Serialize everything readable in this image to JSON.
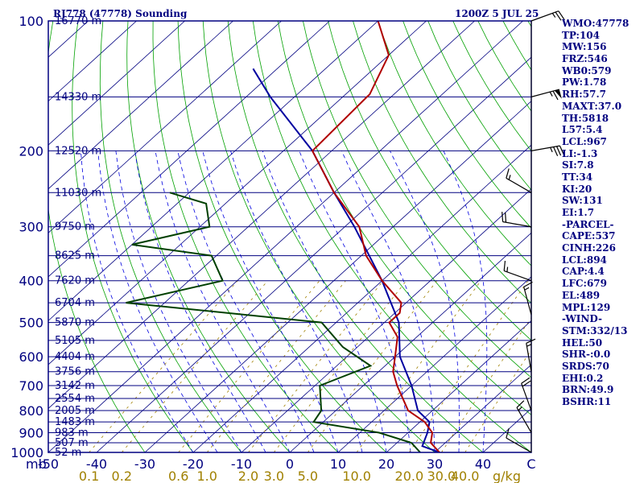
{
  "header": {
    "station": "RJ778 (47778) Sounding",
    "time": "1200Z  5 JUL 25"
  },
  "indices": [
    "WMO:47778",
    "TP:104",
    "MW:156",
    "FRZ:546",
    "WB0:579",
    "PW:1.78",
    "RH:57.7",
    "MAXT:37.0",
    "TH:5818",
    "L57:5.4",
    "LCL:967",
    "LI:-1.3",
    "SI:7.8",
    "TT:34",
    "KI:20",
    "SW:131",
    "EI:1.7",
    "-PARCEL-",
    "CAPE:537",
    "CINH:226",
    "LCL:894",
    "CAP:4.4",
    "LFC:679",
    "EL:489",
    "MPL:129",
    "-WIND-",
    "STM:332/13",
    "HEL:50",
    "SHR-:0.0",
    "SRDS:70",
    "EHI:0.2",
    "BRN:49.9",
    "BSHR:11"
  ],
  "colors": {
    "frame": "#000080",
    "isobar": "#000080",
    "isotherm": "#000080",
    "dry_adiabat": "#00a000",
    "moist_adiabat": "#0000e0",
    "mixing_ratio": "#00c0e0",
    "temperature": "#b00000",
    "dewpoint": "#004000",
    "parcel": "#0000a0",
    "wind_barb": "#000000",
    "mixing_ratio_label": "#a08000"
  },
  "chart_data": {
    "type": "skew-t",
    "pressure_axis": {
      "unit": "mb",
      "scale": "log",
      "range": [
        1000,
        100
      ],
      "labels": [
        "100",
        "200",
        "300",
        "400",
        "500",
        "600",
        "700",
        "800",
        "900",
        "1000"
      ]
    },
    "temperature_axis": {
      "unit": "C",
      "range": [
        -50,
        50
      ],
      "labels": [
        "-50",
        "-40",
        "-30",
        "-20",
        "-10",
        "0",
        "10",
        "20",
        "30",
        "40"
      ]
    },
    "mixing_ratio_axis": {
      "unit": "g/kg",
      "labels": [
        "0.1",
        "0.2",
        "0.6",
        "1.0",
        "2.0",
        "3.0",
        "5.0",
        "10.0",
        "20.0",
        "30.0",
        "40.0"
      ],
      "values": [
        0.1,
        0.2,
        0.6,
        1.0,
        2.0,
        3.0,
        5.0,
        10.0,
        20.0,
        30.0,
        40.0
      ]
    },
    "heights": [
      {
        "p": 100,
        "label": "16770 m"
      },
      {
        "p": 150,
        "label": "14330 m"
      },
      {
        "p": 200,
        "label": "12520 m"
      },
      {
        "p": 250,
        "label": "11030 m"
      },
      {
        "p": 300,
        "label": "9750 m"
      },
      {
        "p": 350,
        "label": "8625 m"
      },
      {
        "p": 400,
        "label": "7620 m"
      },
      {
        "p": 450,
        "label": "6704 m"
      },
      {
        "p": 500,
        "label": "5870 m"
      },
      {
        "p": 550,
        "label": "5105 m"
      },
      {
        "p": 600,
        "label": "4404 m"
      },
      {
        "p": 650,
        "label": "3756 m"
      },
      {
        "p": 700,
        "label": "3142 m"
      },
      {
        "p": 750,
        "label": "2554 m"
      },
      {
        "p": 800,
        "label": "2005 m"
      },
      {
        "p": 850,
        "label": "1483 m"
      },
      {
        "p": 900,
        "label": "983 m"
      },
      {
        "p": 950,
        "label": "507 m"
      },
      {
        "p": 1000,
        "label": "52 m"
      }
    ],
    "temperature": [
      {
        "p": 100,
        "t": -80
      },
      {
        "p": 120,
        "t": -70
      },
      {
        "p": 148,
        "t": -65
      },
      {
        "p": 150,
        "t": -65
      },
      {
        "p": 200,
        "t": -64
      },
      {
        "p": 250,
        "t": -50
      },
      {
        "p": 300,
        "t": -37
      },
      {
        "p": 350,
        "t": -29
      },
      {
        "p": 400,
        "t": -20
      },
      {
        "p": 450,
        "t": -11
      },
      {
        "p": 475,
        "t": -9
      },
      {
        "p": 500,
        "t": -9
      },
      {
        "p": 540,
        "t": -4
      },
      {
        "p": 600,
        "t": 0
      },
      {
        "p": 650,
        "t": 3
      },
      {
        "p": 700,
        "t": 7
      },
      {
        "p": 800,
        "t": 15
      },
      {
        "p": 850,
        "t": 21
      },
      {
        "p": 900,
        "t": 25
      },
      {
        "p": 950,
        "t": 27
      },
      {
        "p": 1000,
        "t": 31
      }
    ],
    "dewpoint": [
      {
        "p": 250,
        "t": -84
      },
      {
        "p": 265,
        "t": -74
      },
      {
        "p": 300,
        "t": -68
      },
      {
        "p": 330,
        "t": -80
      },
      {
        "p": 350,
        "t": -61
      },
      {
        "p": 400,
        "t": -53
      },
      {
        "p": 450,
        "t": -68
      },
      {
        "p": 500,
        "t": -23
      },
      {
        "p": 570,
        "t": -13
      },
      {
        "p": 630,
        "t": -3
      },
      {
        "p": 700,
        "t": -9
      },
      {
        "p": 800,
        "t": -3
      },
      {
        "p": 850,
        "t": -2
      },
      {
        "p": 900,
        "t": 14
      },
      {
        "p": 950,
        "t": 23
      },
      {
        "p": 1000,
        "t": 27
      }
    ],
    "parcel": [
      {
        "p": 1000,
        "t": 31
      },
      {
        "p": 967,
        "t": 26
      },
      {
        "p": 900,
        "t": 24
      },
      {
        "p": 850,
        "t": 22
      },
      {
        "p": 800,
        "t": 17
      },
      {
        "p": 700,
        "t": 10
      },
      {
        "p": 600,
        "t": 1
      },
      {
        "p": 500,
        "t": -7
      },
      {
        "p": 400,
        "t": -20
      },
      {
        "p": 300,
        "t": -38
      },
      {
        "p": 250,
        "t": -50
      },
      {
        "p": 200,
        "t": -64
      },
      {
        "p": 150,
        "t": -85
      },
      {
        "p": 129,
        "t": -95
      }
    ],
    "wind": [
      {
        "p": 100,
        "dir": 70,
        "spd": 25
      },
      {
        "p": 150,
        "dir": 75,
        "spd": 65
      },
      {
        "p": 200,
        "dir": 80,
        "spd": 35
      },
      {
        "p": 250,
        "dir": 300,
        "spd": 15
      },
      {
        "p": 300,
        "dir": 280,
        "spd": 20
      },
      {
        "p": 400,
        "dir": 290,
        "spd": 15
      },
      {
        "p": 480,
        "dir": 345,
        "spd": 15
      },
      {
        "p": 650,
        "dir": 350,
        "spd": 15
      },
      {
        "p": 800,
        "dir": 340,
        "spd": 20
      },
      {
        "p": 900,
        "dir": 330,
        "spd": 15
      },
      {
        "p": 1000,
        "dir": 300,
        "spd": 10
      }
    ]
  }
}
